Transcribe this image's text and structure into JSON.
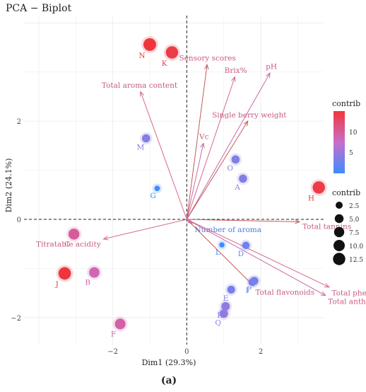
{
  "chart_data": {
    "type": "scatter",
    "title": "PCA − Biplot",
    "xlabel": "Dim1 (29.3%)",
    "ylabel": "Dim2 (24.1%)",
    "caption": "(a)",
    "xlim": [
      -4.4,
      3.7
    ],
    "ylim": [
      -2.55,
      4.15
    ],
    "xticks": [
      -2,
      0,
      2
    ],
    "yticks": [
      -2,
      0,
      2
    ],
    "grid": true,
    "colors": {
      "low": "#3f8bff",
      "mid": "#c86fc9",
      "high": "#f0363d"
    },
    "points": [
      {
        "label": "N",
        "x": -1.0,
        "y": 3.56,
        "contrib": 13.5
      },
      {
        "label": "K",
        "x": -0.4,
        "y": 3.4,
        "contrib": 12.5
      },
      {
        "label": "M",
        "x": -1.1,
        "y": 1.65,
        "contrib": 4.0
      },
      {
        "label": "G",
        "x": -0.8,
        "y": 0.63,
        "contrib": 1.0
      },
      {
        "label": "O",
        "x": 1.32,
        "y": 1.22,
        "contrib": 4.0
      },
      {
        "label": "A",
        "x": 1.52,
        "y": 0.83,
        "contrib": 4.0
      },
      {
        "label": "H",
        "x": 3.57,
        "y": 0.65,
        "contrib": 12.5
      },
      {
        "label": "C",
        "x": -3.05,
        "y": -0.3,
        "contrib": 9.0
      },
      {
        "label": "J",
        "x": -3.3,
        "y": -1.1,
        "contrib": 13.0
      },
      {
        "label": "B",
        "x": -2.5,
        "y": -1.08,
        "contrib": 8.0
      },
      {
        "label": "F",
        "x": -1.8,
        "y": -2.13,
        "contrib": 8.5
      },
      {
        "label": "D",
        "x": 1.6,
        "y": -0.53,
        "contrib": 3.0
      },
      {
        "label": "L",
        "x": 0.95,
        "y": -0.52,
        "contrib": 0.8
      },
      {
        "label": "I",
        "x": 1.77,
        "y": -1.28,
        "contrib": 3.0
      },
      {
        "label": "P",
        "x": 1.83,
        "y": -1.25,
        "contrib": 3.5
      },
      {
        "label": "E",
        "x": 1.2,
        "y": -1.43,
        "contrib": 3.5
      },
      {
        "label": "R",
        "x": 1.05,
        "y": -1.77,
        "contrib": 4.5
      },
      {
        "label": "Q",
        "x": 1.0,
        "y": -1.92,
        "contrib": 4.5
      }
    ],
    "vectors": [
      {
        "label": "Sensory scores",
        "x": 0.55,
        "y": 3.15
      },
      {
        "label": "Brix%",
        "x": 1.3,
        "y": 2.9
      },
      {
        "label": "pH",
        "x": 2.25,
        "y": 2.98
      },
      {
        "label": "Single berry weight",
        "x": 1.65,
        "y": 2.0
      },
      {
        "label": "Total aroma content",
        "x": -1.25,
        "y": 2.6
      },
      {
        "label": "Vc",
        "x": 0.45,
        "y": 1.55
      },
      {
        "label": "Total tannins",
        "x": 3.05,
        "y": -0.05
      },
      {
        "label": "Titratable acidity",
        "x": -2.25,
        "y": -0.4
      },
      {
        "label": "Number of aroma",
        "x": 0.15,
        "y": -0.08
      },
      {
        "label": "Total flavonoids",
        "x": 1.8,
        "y": -1.35
      },
      {
        "label": "Total phenols",
        "x": 3.85,
        "y": -1.38
      },
      {
        "label": "Total anthocyanins",
        "x": 3.75,
        "y": -1.55
      }
    ],
    "legend_color": {
      "title": "contrib",
      "ticks": [
        "5",
        "10"
      ],
      "placement": "right"
    },
    "legend_size": {
      "title": "contrib",
      "items": [
        "2.5",
        "5.0",
        "7.5",
        "10.0",
        "12.5"
      ],
      "placement": "right"
    }
  }
}
